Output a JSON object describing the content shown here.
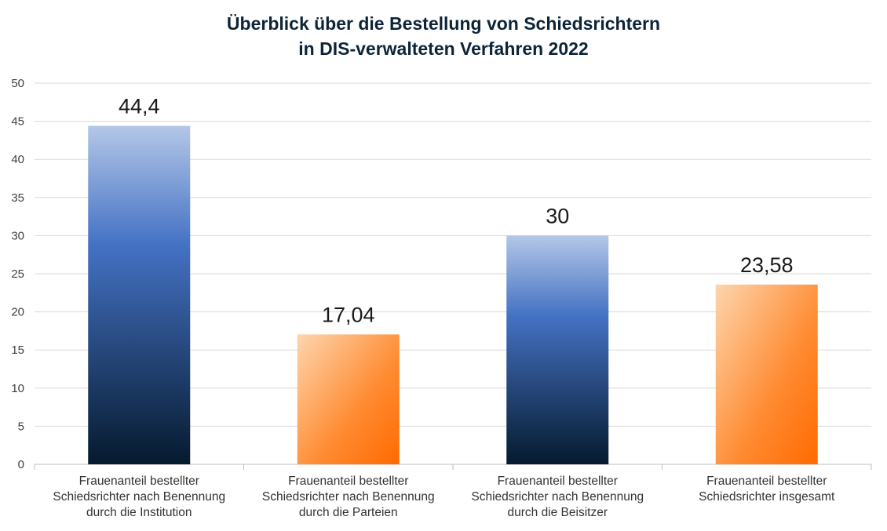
{
  "chart_data": {
    "type": "bar",
    "title_lines": [
      "Überblick über die Bestellung von Schiedsrichtern",
      "in DIS-verwalteten Verfahren 2022"
    ],
    "categories": [
      [
        "Frauenanteil bestellter",
        "Schiedsrichter nach Benennung",
        "durch die Institution"
      ],
      [
        "Frauenanteil bestellter",
        "Schiedsrichter nach Benennung",
        "durch die Parteien"
      ],
      [
        "Frauenanteil bestellter",
        "Schiedsrichter nach Benennung",
        "durch die Beisitzer"
      ],
      [
        "Frauenanteil bestellter",
        "Schiedsrichter insgesamt"
      ]
    ],
    "values": [
      44.4,
      17.04,
      30,
      23.58
    ],
    "data_labels": [
      "44,4",
      "17,04",
      "30",
      "23,58"
    ],
    "bar_styles": [
      "blue",
      "orange",
      "blue",
      "orange"
    ],
    "yticks": [
      "0",
      "5",
      "10",
      "15",
      "20",
      "25",
      "30",
      "35",
      "40",
      "45",
      "50"
    ],
    "ylim": [
      0,
      50
    ],
    "grid": true,
    "legend": "none",
    "colors": {
      "blue_top": "#b4c7e7",
      "blue_mid": "#4472c4",
      "blue_bottom": "#061a2e",
      "orange_top": "#fdd5ad",
      "orange_bottom": "#ff6a00",
      "grid": "#d9d9d9",
      "title": "#0d2438"
    }
  }
}
